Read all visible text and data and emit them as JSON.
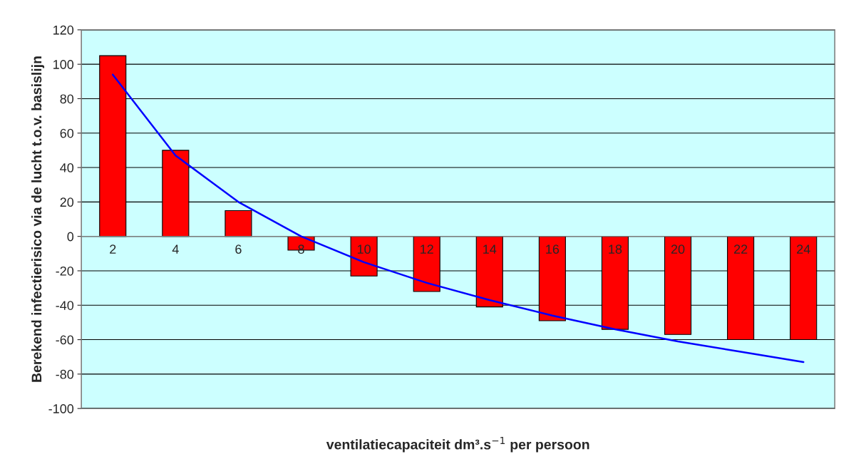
{
  "chart_data": {
    "type": "bar",
    "xlabel": "ventilatiecapaciteit dm³.s$^{−1}$ per persoon",
    "ylabel": "Berekend infectierisico via de lucht t.o.v. basislijn",
    "categories": [
      "2",
      "4",
      "6",
      "8",
      "10",
      "12",
      "14",
      "16",
      "18",
      "20",
      "22",
      "24"
    ],
    "series": [
      {
        "color": "#ff0000",
        "values": [
          105,
          50,
          15,
          -8,
          -23,
          -32,
          -41,
          -49,
          -54,
          -57,
          -60,
          -60
        ]
      },
      {
        "type": "line",
        "color": "#0000ff",
        "values": [
          94,
          47,
          20,
          0,
          -15,
          -27,
          -37,
          -46,
          -54,
          -61,
          -67,
          -73
        ]
      }
    ],
    "ylim": [
      -100,
      120
    ],
    "yticks": [
      -100,
      -80,
      -60,
      -40,
      -20,
      0,
      20,
      40,
      60,
      80,
      100,
      120
    ],
    "grid": "y",
    "legend": false
  }
}
